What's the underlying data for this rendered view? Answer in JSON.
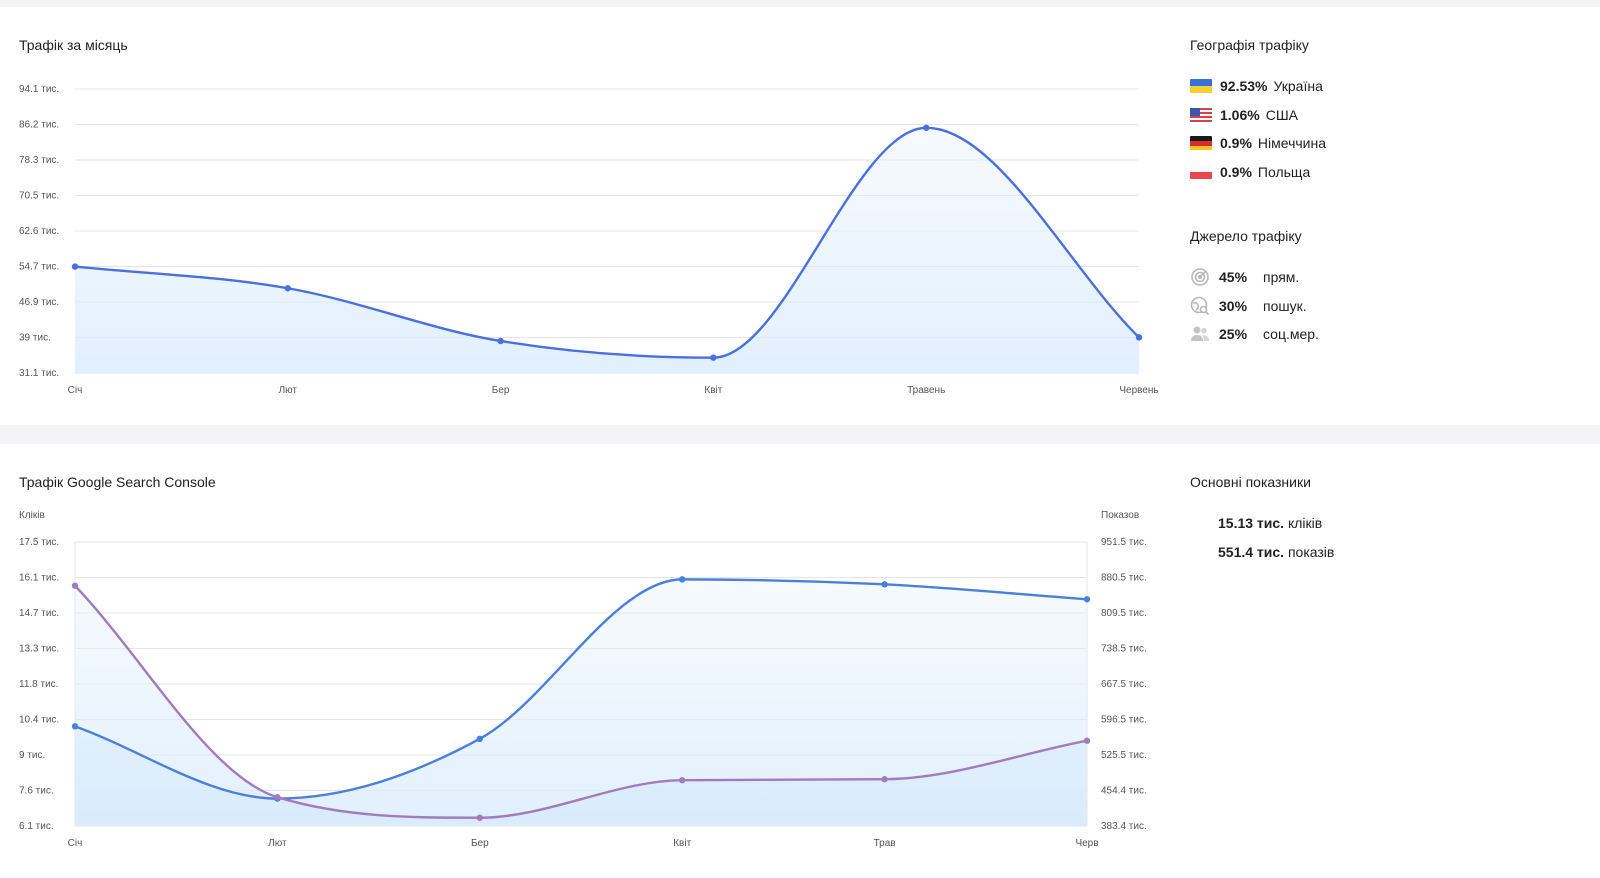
{
  "monthly": {
    "title": "Трафік за місяць"
  },
  "geo": {
    "title": "Географія трафіку",
    "items": [
      {
        "percent": "92.53%",
        "country": "Україна",
        "flag": "ua-flag-icon"
      },
      {
        "percent": "1.06%",
        "country": "США",
        "flag": "us-flag-icon"
      },
      {
        "percent": "0.9%",
        "country": "Німеччина",
        "flag": "de-flag-icon"
      },
      {
        "percent": "0.9%",
        "country": "Польща",
        "flag": "pl-flag-icon"
      }
    ]
  },
  "sources": {
    "title": "Джерело трафіку",
    "items": [
      {
        "percent": "45%",
        "label": "прям.",
        "icon": "target-icon"
      },
      {
        "percent": "30%",
        "label": "пошук.",
        "icon": "globe-search-icon"
      },
      {
        "percent": "25%",
        "label": "соц.мер.",
        "icon": "users-icon"
      }
    ]
  },
  "gsc": {
    "title": "Трафік Google Search Console"
  },
  "metrics": {
    "title": "Основні показники",
    "clicks_value": "15.13 тис.",
    "clicks_label": "кліків",
    "impressions_value": "551.4 тис.",
    "impressions_label": "показів"
  },
  "chart_data": [
    {
      "type": "area",
      "categories": [
        "Січ",
        "Лют",
        "Бер",
        "Квіт",
        "Травень",
        "Червень"
      ],
      "y_ticks": [
        "94.1 тис.",
        "86.2 тис.",
        "78.3 тис.",
        "70.5 тис.",
        "62.6 тис.",
        "54.7 тис.",
        "46.9 тис.",
        "39 тис.",
        "31.1 тис."
      ],
      "ylim": [
        31100,
        94100
      ],
      "grid": true,
      "series": [
        {
          "values": [
            54700,
            49900,
            38200,
            34500,
            85500,
            39000
          ],
          "color": "#4a6fe0"
        }
      ]
    },
    {
      "type": "area",
      "categories": [
        "Січ",
        "Лют",
        "Бер",
        "Квіт",
        "Трав",
        "Черв"
      ],
      "ylabel": "Кліків",
      "ylabel_right": "Показов",
      "y_ticks": [
        "17.5 тис.",
        "16.1 тис.",
        "14.7 тис.",
        "13.3 тис.",
        "11.8 тис.",
        "10.4 тис.",
        "9 тис.",
        "7.6 тис.",
        "6.1 тис."
      ],
      "y_ticks_right": [
        "951.5 тис.",
        "880.5 тис.",
        "809.5 тис.",
        "738.5 тис.",
        "667.5 тис.",
        "596.5 тис.",
        "525.5 тис.",
        "454.4 тис.",
        "383.4 тис."
      ],
      "ylim": [
        6100,
        17500
      ],
      "ylim_right": [
        383400,
        951500
      ],
      "grid": true,
      "series": [
        {
          "axis": "left",
          "values": [
            10100,
            7200,
            9600,
            16000,
            15800,
            15200
          ],
          "color": "#4a7fdc"
        },
        {
          "axis": "right",
          "values": [
            864000,
            441000,
            400000,
            475000,
            477000,
            554000
          ],
          "color": "#a07bc0"
        }
      ]
    }
  ]
}
